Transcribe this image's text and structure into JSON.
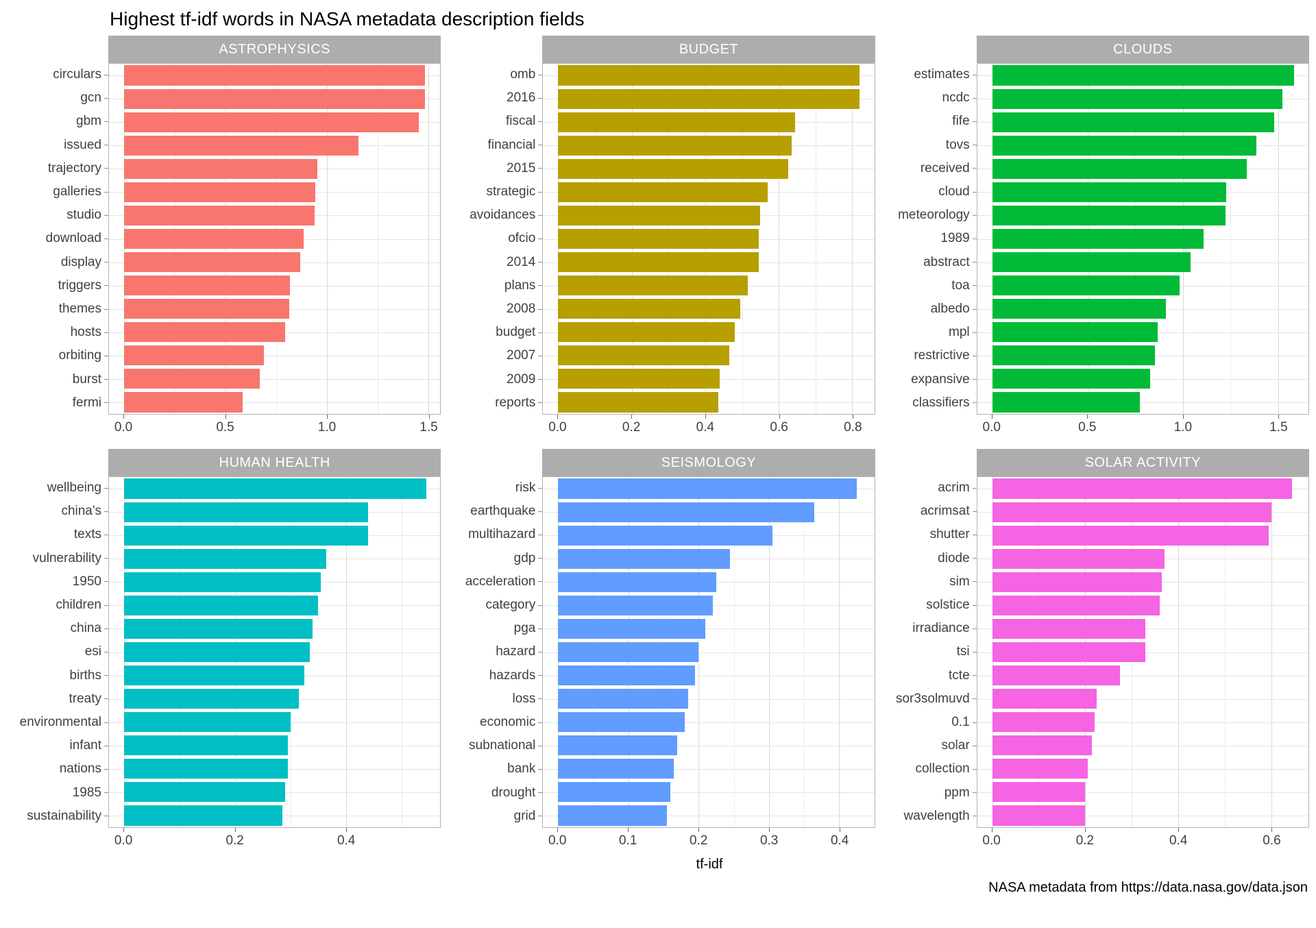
{
  "page": {
    "title": "Highest tf-idf words in NASA metadata description fields",
    "x_axis_title": "tf-idf",
    "caption": "NASA metadata from https://data.nasa.gov/data.json"
  },
  "style": {
    "strip_fill": "#ADADAD",
    "strip_text_color": "#FFFFFF",
    "panel_border_color": "#B3B3B3",
    "grid_major_color": "#D9D9D9",
    "grid_minor_color": "#ECECEC",
    "axis_text_color": "#404040",
    "title_color": "#000000"
  },
  "chart_data": [
    {
      "type": "bar",
      "orientation": "horizontal",
      "facet": "ASTROPHYSICS",
      "color": "#F8766D",
      "categories": [
        "circulars",
        "gcn",
        "gbm",
        "issued",
        "trajectory",
        "galleries",
        "studio",
        "download",
        "display",
        "triggers",
        "themes",
        "hosts",
        "orbiting",
        "burst",
        "fermi"
      ],
      "values": [
        1.485,
        1.485,
        1.455,
        1.155,
        0.955,
        0.945,
        0.94,
        0.885,
        0.87,
        0.82,
        0.815,
        0.795,
        0.69,
        0.67,
        0.585
      ],
      "x_major_ticks": [
        0,
        0.5,
        1.0,
        1.5
      ],
      "x_major_tick_labels": [
        "0.0",
        "0.5",
        "1.0",
        "1.5"
      ],
      "x_minor_ticks": [
        0.25,
        0.75,
        1.25
      ],
      "xlim": [
        0,
        1.56
      ]
    },
    {
      "type": "bar",
      "orientation": "horizontal",
      "facet": "BUDGET",
      "color": "#B79F00",
      "categories": [
        "omb",
        "2016",
        "fiscal",
        "financial",
        "2015",
        "strategic",
        "avoidances",
        "ofcio",
        "2014",
        "plans",
        "2008",
        "budget",
        "2007",
        "2009",
        "reports"
      ],
      "values": [
        0.82,
        0.82,
        0.645,
        0.635,
        0.625,
        0.57,
        0.55,
        0.545,
        0.545,
        0.515,
        0.495,
        0.48,
        0.465,
        0.44,
        0.435
      ],
      "x_major_ticks": [
        0,
        0.2,
        0.4,
        0.6,
        0.8
      ],
      "x_major_tick_labels": [
        "0.0",
        "0.2",
        "0.4",
        "0.6",
        "0.8"
      ],
      "x_minor_ticks": [
        0.1,
        0.3,
        0.5,
        0.7
      ],
      "xlim": [
        0,
        0.86
      ]
    },
    {
      "type": "bar",
      "orientation": "horizontal",
      "facet": "CLOUDS",
      "color": "#00BA38",
      "categories": [
        "estimates",
        "ncdc",
        "fife",
        "tovs",
        "received",
        "cloud",
        "meteorology",
        "1989",
        "abstract",
        "toa",
        "albedo",
        "mpl",
        "restrictive",
        "expansive",
        "classifiers"
      ],
      "values": [
        1.585,
        1.525,
        1.48,
        1.385,
        1.335,
        1.23,
        1.225,
        1.11,
        1.04,
        0.985,
        0.91,
        0.87,
        0.855,
        0.83,
        0.775
      ],
      "x_major_ticks": [
        0,
        0.5,
        1.0,
        1.5
      ],
      "x_major_tick_labels": [
        "0.0",
        "0.5",
        "1.0",
        "1.5"
      ],
      "x_minor_ticks": [
        0.25,
        0.75,
        1.25
      ],
      "xlim": [
        0,
        1.66
      ]
    },
    {
      "type": "bar",
      "orientation": "horizontal",
      "facet": "HUMAN HEALTH",
      "color": "#00BFC4",
      "categories": [
        "wellbeing",
        "china's",
        "texts",
        "vulnerability",
        "1950",
        "children",
        "china",
        "esi",
        "births",
        "treaty",
        "environmental",
        "infant",
        "nations",
        "1985",
        "sustainability"
      ],
      "values": [
        0.545,
        0.44,
        0.44,
        0.365,
        0.355,
        0.35,
        0.34,
        0.335,
        0.325,
        0.315,
        0.3,
        0.295,
        0.295,
        0.29,
        0.285
      ],
      "x_major_ticks": [
        0,
        0.2,
        0.4
      ],
      "x_major_tick_labels": [
        "0.0",
        "0.2",
        "0.4"
      ],
      "x_minor_ticks": [
        0.1,
        0.3,
        0.5
      ],
      "xlim": [
        0,
        0.57
      ]
    },
    {
      "type": "bar",
      "orientation": "horizontal",
      "facet": "SEISMOLOGY",
      "color": "#619CFF",
      "categories": [
        "risk",
        "earthquake",
        "multihazard",
        "gdp",
        "acceleration",
        "category",
        "pga",
        "hazard",
        "hazards",
        "loss",
        "economic",
        "subnational",
        "bank",
        "drought",
        "grid"
      ],
      "values": [
        0.425,
        0.365,
        0.305,
        0.245,
        0.225,
        0.22,
        0.21,
        0.2,
        0.195,
        0.185,
        0.18,
        0.17,
        0.165,
        0.16,
        0.155
      ],
      "x_major_ticks": [
        0,
        0.1,
        0.2,
        0.3,
        0.4
      ],
      "x_major_tick_labels": [
        "0.0",
        "0.1",
        "0.2",
        "0.3",
        "0.4"
      ],
      "x_minor_ticks": [
        0.05,
        0.15,
        0.25,
        0.35
      ],
      "xlim": [
        0,
        0.45
      ]
    },
    {
      "type": "bar",
      "orientation": "horizontal",
      "facet": "SOLAR ACTIVITY",
      "color": "#F564E3",
      "categories": [
        "acrim",
        "acrimsat",
        "shutter",
        "diode",
        "sim",
        "solstice",
        "irradiance",
        "tsi",
        "tcte",
        "sor3solmuvd",
        "0.1",
        "solar",
        "collection",
        "ppm",
        "wavelength"
      ],
      "values": [
        0.645,
        0.6,
        0.595,
        0.37,
        0.365,
        0.36,
        0.33,
        0.33,
        0.275,
        0.225,
        0.22,
        0.215,
        0.205,
        0.2,
        0.2
      ],
      "x_major_ticks": [
        0,
        0.2,
        0.4,
        0.6
      ],
      "x_major_tick_labels": [
        "0.0",
        "0.2",
        "0.4",
        "0.6"
      ],
      "x_minor_ticks": [
        0.1,
        0.3,
        0.5
      ],
      "xlim": [
        0,
        0.68
      ]
    }
  ]
}
